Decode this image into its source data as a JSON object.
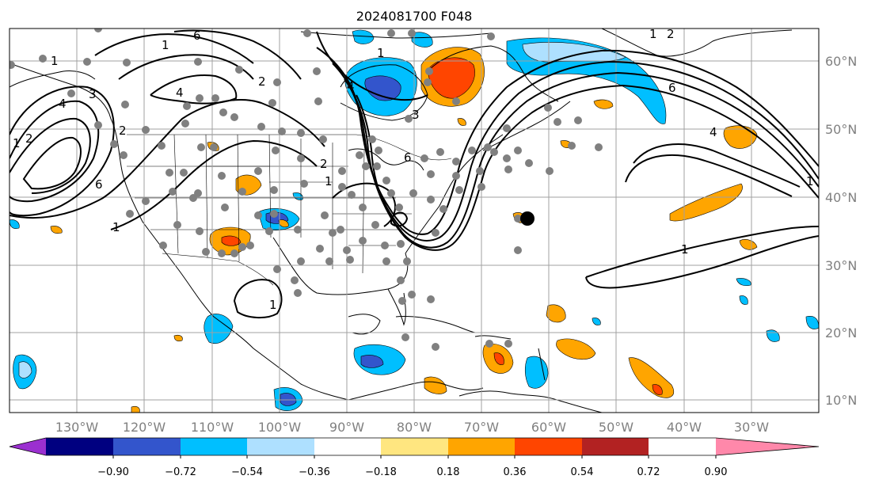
{
  "title": "2024081700 F048",
  "lon_labels": [
    "130°W",
    "120°W",
    "110°W",
    "100°W",
    "90°W",
    "80°W",
    "70°W",
    "60°W",
    "50°W",
    "40°W",
    "30°W"
  ],
  "lat_labels": [
    "60°N",
    "50°N",
    "40°N",
    "30°N",
    "20°N",
    "10°N"
  ],
  "colorbar": {
    "tick_labels": [
      "−0.90",
      "−0.72",
      "−0.54",
      "−0.36",
      "−0.18",
      "0.18",
      "0.36",
      "0.54",
      "0.72",
      "0.90"
    ],
    "colors": [
      "#9b30d0",
      "#000080",
      "#3355cc",
      "#00bfff",
      "#aee0ff",
      "#ffffff",
      "#ffe680",
      "#ffa500",
      "#ff4500",
      "#b22222",
      "#ff88aa"
    ]
  },
  "contour_labels": [
    "1",
    "1",
    "2",
    "3",
    "4",
    "6",
    "1",
    "2",
    "4",
    "6",
    "1",
    "2",
    "1",
    "4",
    "3",
    "2",
    "6",
    "1",
    "1",
    "1",
    "2",
    "6",
    "4",
    "1",
    "1"
  ],
  "colors": {
    "land_outline": "#000000",
    "contour": "#000000",
    "grid": "#a0a0a0",
    "station": "#808080",
    "storm_marker": "#000000"
  }
}
